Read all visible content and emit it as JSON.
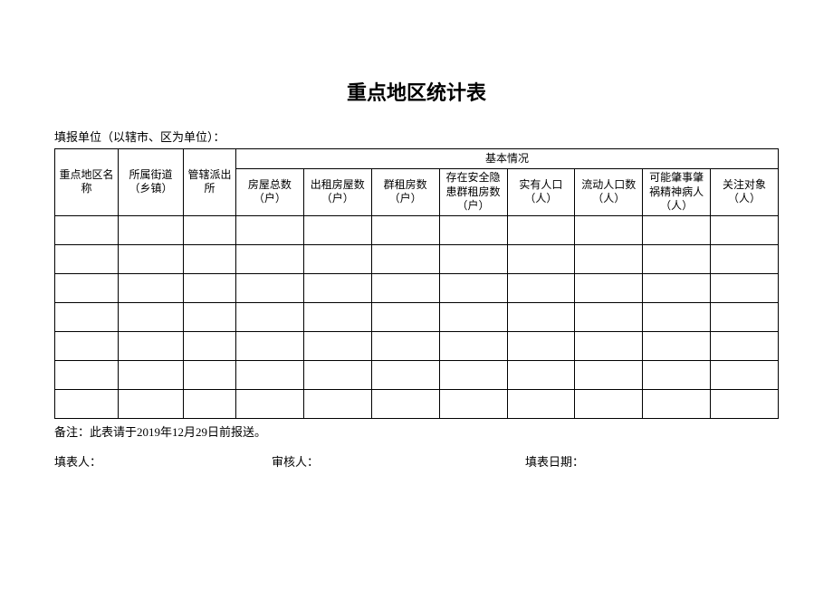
{
  "title": "重点地区统计表",
  "subtitle": "填报单位（以辖市、区为单位）：",
  "columns": {
    "name": "重点地区名称",
    "street": "所属街道（乡镇）",
    "police": "管辖派出所",
    "group": "基本情况",
    "house_total": "房屋总数（户）",
    "rent_house": "出租房屋数（户）",
    "group_rent": "群租房数（户）",
    "danger_rent": "存在安全隐患群租房数（户）",
    "real_pop": "实有人口（人）",
    "float_pop": "流动人口数（人）",
    "mental": "可能肇事肇祸精神病人（人）",
    "focus": "关注对象（人）"
  },
  "rows": [
    [
      "",
      "",
      "",
      "",
      "",
      "",
      "",
      "",
      "",
      "",
      ""
    ],
    [
      "",
      "",
      "",
      "",
      "",
      "",
      "",
      "",
      "",
      "",
      ""
    ],
    [
      "",
      "",
      "",
      "",
      "",
      "",
      "",
      "",
      "",
      "",
      ""
    ],
    [
      "",
      "",
      "",
      "",
      "",
      "",
      "",
      "",
      "",
      "",
      ""
    ],
    [
      "",
      "",
      "",
      "",
      "",
      "",
      "",
      "",
      "",
      "",
      ""
    ],
    [
      "",
      "",
      "",
      "",
      "",
      "",
      "",
      "",
      "",
      "",
      ""
    ],
    [
      "",
      "",
      "",
      "",
      "",
      "",
      "",
      "",
      "",
      "",
      ""
    ]
  ],
  "note": "备注：此表请于2019年12月29日前报送。",
  "footer": {
    "filler": "填表人：",
    "auditor": "审核人：",
    "date": "填表日期："
  },
  "styles": {
    "background": "#ffffff",
    "border_color": "#000000",
    "text_color": "#000000",
    "title_fontsize": 22,
    "body_fontsize": 12,
    "label_fontsize": 13
  }
}
